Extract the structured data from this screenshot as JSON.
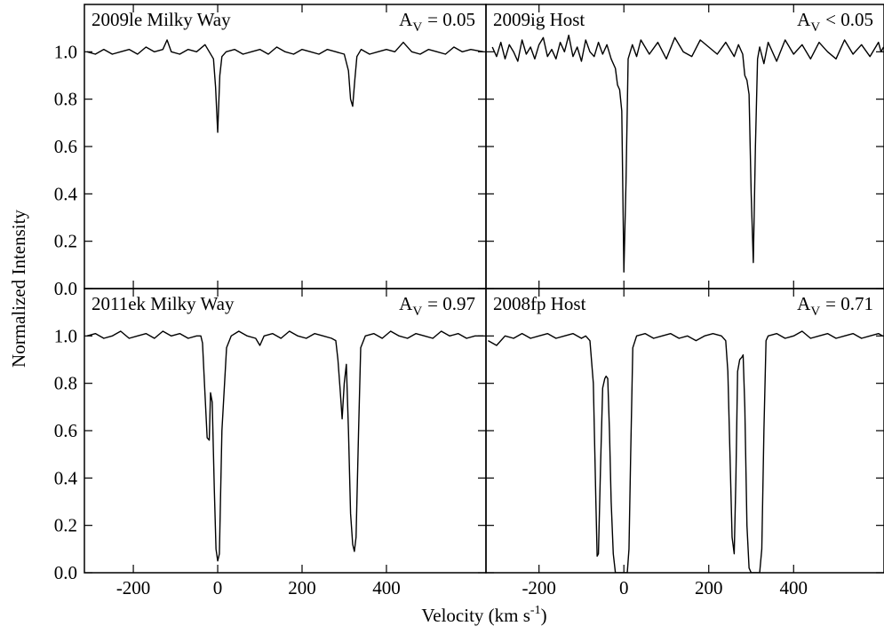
{
  "figure": {
    "ylabel": "Normalized Intensity",
    "xlabel": {
      "text": "Velocity (km s",
      "superscript": "-1",
      "end": ")"
    }
  },
  "chart_data": [
    {
      "type": "line",
      "title": "2009le Milky Way",
      "annotation": {
        "symbol": "A",
        "subscript": "V",
        "text": "= 0.05"
      },
      "color": "#000000",
      "xlim": [
        -316,
        636
      ],
      "ylim": [
        0,
        1.2
      ],
      "xticks": [
        -200,
        0,
        200,
        400
      ],
      "yticks": [
        {
          "value": 0,
          "label": "0.0"
        },
        0.2,
        0.4,
        0.6,
        0.8,
        {
          "value": 1,
          "label": "1.0"
        }
      ],
      "show_xticklabels": false,
      "show_yticklabels": true,
      "x": [
        -310,
        -290,
        -270,
        -250,
        -230,
        -210,
        -190,
        -170,
        -150,
        -130,
        -120,
        -110,
        -90,
        -70,
        -50,
        -30,
        -20,
        -10,
        -5,
        0,
        5,
        10,
        20,
        40,
        60,
        80,
        100,
        120,
        140,
        160,
        180,
        200,
        220,
        240,
        260,
        280,
        300,
        310,
        315,
        320,
        325,
        330,
        340,
        360,
        380,
        400,
        420,
        440,
        460,
        480,
        500,
        520,
        540,
        560,
        580,
        600,
        630
      ],
      "values": [
        1.0,
        0.99,
        1.01,
        0.99,
        1.0,
        1.01,
        0.99,
        1.02,
        1.0,
        1.01,
        1.05,
        1.0,
        0.99,
        1.01,
        1.0,
        1.03,
        1.0,
        0.97,
        0.85,
        0.66,
        0.9,
        0.98,
        1.0,
        1.01,
        0.99,
        1.0,
        1.01,
        0.99,
        1.02,
        1.0,
        0.99,
        1.01,
        1.0,
        0.99,
        1.01,
        1.0,
        0.99,
        0.92,
        0.8,
        0.77,
        0.88,
        0.98,
        1.01,
        0.99,
        1.0,
        1.01,
        1.0,
        1.04,
        1.0,
        0.99,
        1.01,
        1.0,
        0.99,
        1.02,
        1.0,
        1.01,
        1.0
      ]
    },
    {
      "type": "line",
      "title": "2009ig Host",
      "annotation": {
        "symbol": "A",
        "subscript": "V",
        "text": "< 0.05"
      },
      "color": "#000000",
      "xlim": [
        -325,
        613
      ],
      "ylim": [
        0,
        1.2
      ],
      "xticks": [
        -200,
        0,
        200,
        400
      ],
      "yticks": [
        {
          "value": 0,
          "label": "0.0"
        },
        0.2,
        0.4,
        0.6,
        0.8,
        {
          "value": 1,
          "label": "1.0"
        }
      ],
      "show_xticklabels": false,
      "show_yticklabels": false,
      "x": [
        -310,
        -300,
        -290,
        -280,
        -270,
        -260,
        -250,
        -240,
        -230,
        -220,
        -210,
        -200,
        -190,
        -180,
        -170,
        -160,
        -150,
        -140,
        -130,
        -120,
        -110,
        -100,
        -90,
        -80,
        -70,
        -60,
        -50,
        -40,
        -30,
        -20,
        -15,
        -10,
        -5,
        0,
        5,
        10,
        20,
        30,
        40,
        60,
        80,
        100,
        120,
        140,
        160,
        180,
        200,
        220,
        240,
        260,
        270,
        280,
        285,
        290,
        295,
        300,
        305,
        310,
        315,
        320,
        330,
        340,
        360,
        380,
        400,
        420,
        440,
        460,
        480,
        500,
        520,
        540,
        560,
        580,
        600,
        606,
        612
      ],
      "values": [
        1.02,
        0.98,
        1.04,
        0.97,
        1.03,
        1.0,
        0.96,
        1.05,
        0.99,
        1.02,
        0.97,
        1.03,
        1.06,
        0.98,
        1.01,
        0.97,
        1.04,
        1.0,
        1.07,
        0.98,
        1.02,
        0.96,
        1.05,
        1.0,
        0.98,
        1.04,
        0.99,
        1.03,
        0.97,
        0.93,
        0.86,
        0.84,
        0.75,
        0.07,
        0.45,
        0.97,
        1.03,
        0.98,
        1.05,
        0.99,
        1.04,
        0.97,
        1.06,
        1.0,
        0.98,
        1.05,
        1.02,
        0.99,
        1.04,
        0.98,
        1.03,
        0.99,
        0.9,
        0.88,
        0.82,
        0.4,
        0.11,
        0.6,
        0.97,
        1.02,
        0.95,
        1.04,
        0.96,
        1.05,
        0.99,
        1.03,
        0.97,
        1.04,
        1.0,
        0.97,
        1.05,
        0.99,
        1.03,
        0.98,
        1.04,
        1.0,
        1.02
      ]
    },
    {
      "type": "line",
      "title": "2011ek Milky Way",
      "annotation": {
        "symbol": "A",
        "subscript": "V",
        "text": "= 0.97"
      },
      "color": "#000000",
      "xlim": [
        -316,
        636
      ],
      "ylim": [
        0,
        1.2
      ],
      "xticks": [
        -200,
        0,
        200,
        400
      ],
      "yticks": [
        {
          "value": 0,
          "label": "0.0"
        },
        0.2,
        0.4,
        0.6,
        0.8,
        {
          "value": 1,
          "label": "1.0"
        }
      ],
      "show_xticklabels": true,
      "show_yticklabels": true,
      "x": [
        -310,
        -290,
        -270,
        -250,
        -230,
        -210,
        -190,
        -170,
        -150,
        -130,
        -110,
        -90,
        -70,
        -50,
        -40,
        -36,
        -30,
        -25,
        -20,
        -17,
        -13,
        -8,
        -4,
        0,
        4,
        10,
        21,
        32,
        50,
        70,
        90,
        100,
        110,
        130,
        150,
        170,
        190,
        210,
        230,
        250,
        270,
        280,
        285,
        290,
        295,
        300,
        305,
        310,
        315,
        320,
        324,
        328,
        334,
        339,
        350,
        370,
        390,
        410,
        430,
        450,
        470,
        490,
        510,
        530,
        550,
        570,
        590,
        610,
        630
      ],
      "values": [
        1.0,
        1.01,
        0.99,
        1.0,
        1.02,
        0.99,
        1.0,
        1.01,
        0.99,
        1.02,
        1.0,
        1.01,
        0.99,
        1.0,
        1.0,
        0.97,
        0.75,
        0.57,
        0.56,
        0.76,
        0.72,
        0.35,
        0.1,
        0.05,
        0.08,
        0.6,
        0.95,
        1.0,
        1.02,
        1.0,
        0.99,
        0.96,
        1.0,
        1.01,
        0.99,
        1.02,
        1.0,
        0.99,
        1.01,
        1.0,
        0.99,
        0.98,
        0.9,
        0.78,
        0.65,
        0.8,
        0.88,
        0.6,
        0.25,
        0.12,
        0.09,
        0.15,
        0.6,
        0.95,
        1.0,
        1.01,
        0.99,
        1.02,
        1.0,
        0.99,
        1.01,
        1.0,
        0.99,
        1.02,
        1.0,
        1.01,
        0.99,
        1.0,
        1.0
      ]
    },
    {
      "type": "line",
      "title": "2008fp Host",
      "annotation": {
        "symbol": "A",
        "subscript": "V",
        "text": "= 0.71"
      },
      "color": "#000000",
      "xlim": [
        -325,
        613
      ],
      "ylim": [
        0,
        1.2
      ],
      "xticks": [
        -200,
        0,
        200,
        400
      ],
      "yticks": [
        {
          "value": 0,
          "label": "0.0"
        },
        0.2,
        0.4,
        0.6,
        0.8,
        {
          "value": 1,
          "label": "1.0"
        }
      ],
      "show_xticklabels": true,
      "show_yticklabels": false,
      "x": [
        -320,
        -300,
        -280,
        -260,
        -240,
        -220,
        -200,
        -180,
        -160,
        -140,
        -120,
        -100,
        -90,
        -80,
        -72,
        -66,
        -63,
        -60,
        -55,
        -50,
        -45,
        -42,
        -38,
        -34,
        -30,
        -25,
        -20,
        -15,
        -10,
        0,
        8,
        12,
        16,
        21,
        30,
        50,
        70,
        90,
        110,
        130,
        150,
        170,
        190,
        210,
        230,
        240,
        245,
        250,
        255,
        260,
        264,
        268,
        273,
        278,
        281,
        285,
        290,
        295,
        300,
        310,
        320,
        325,
        330,
        335,
        340,
        360,
        380,
        400,
        420,
        440,
        460,
        480,
        500,
        520,
        540,
        560,
        580,
        600,
        610
      ],
      "values": [
        0.98,
        0.96,
        1.0,
        0.99,
        1.01,
        0.99,
        1.0,
        1.01,
        0.99,
        1.0,
        1.01,
        0.99,
        1.0,
        0.98,
        0.8,
        0.3,
        0.07,
        0.08,
        0.45,
        0.78,
        0.82,
        0.83,
        0.82,
        0.6,
        0.3,
        0.08,
        0.0,
        0.0,
        0.0,
        0.0,
        0.0,
        0.1,
        0.5,
        0.95,
        1.0,
        1.01,
        0.99,
        1.0,
        1.01,
        0.99,
        1.0,
        0.98,
        1.0,
        1.01,
        1.0,
        0.98,
        0.85,
        0.5,
        0.15,
        0.08,
        0.4,
        0.85,
        0.9,
        0.91,
        0.92,
        0.7,
        0.2,
        0.02,
        0.0,
        0.0,
        0.0,
        0.1,
        0.6,
        0.98,
        1.0,
        1.01,
        0.99,
        1.0,
        1.02,
        0.99,
        1.0,
        1.01,
        0.99,
        1.0,
        1.01,
        0.99,
        1.0,
        1.01,
        1.0
      ]
    }
  ]
}
